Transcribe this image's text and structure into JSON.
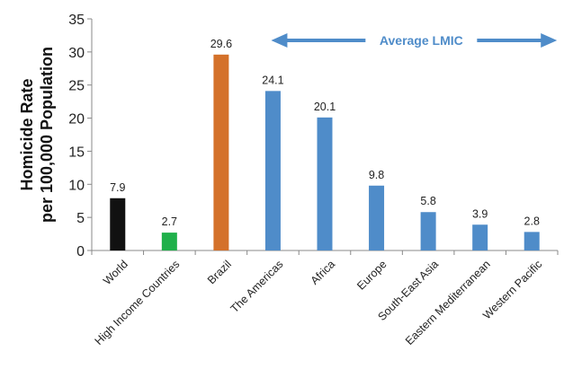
{
  "chart_data": {
    "type": "bar",
    "categories": [
      "World",
      "High Income Countries",
      "Brazil",
      "The Americas",
      "Africa",
      "Europe",
      "South-East Asia",
      "Eastern Mediterranean",
      "Western Pacific"
    ],
    "values": [
      7.9,
      2.7,
      29.6,
      24.1,
      20.1,
      9.8,
      5.8,
      3.9,
      2.8
    ],
    "value_labels": [
      "7.9",
      "2.7",
      "29.6",
      "24.1",
      "20.1",
      "9.8",
      "5.8",
      "3.9",
      "2.8"
    ],
    "colors": [
      "#111111",
      "#1fb04a",
      "#d4712a",
      "#4f8cc9",
      "#4f8cc9",
      "#4f8cc9",
      "#4f8cc9",
      "#4f8cc9",
      "#4f8cc9"
    ],
    "ylabel_line1": "Homicide Rate",
    "ylabel_line2": "per 100,000 Population",
    "ylim": [
      0,
      35
    ],
    "yticks": [
      "0",
      "5",
      "10",
      "15",
      "20",
      "25",
      "30",
      "35"
    ],
    "grid": false,
    "annotation": {
      "text": "Average LMIC",
      "color": "#4f8cc9",
      "spans": [
        "The Americas",
        "Western Pacific"
      ]
    }
  }
}
